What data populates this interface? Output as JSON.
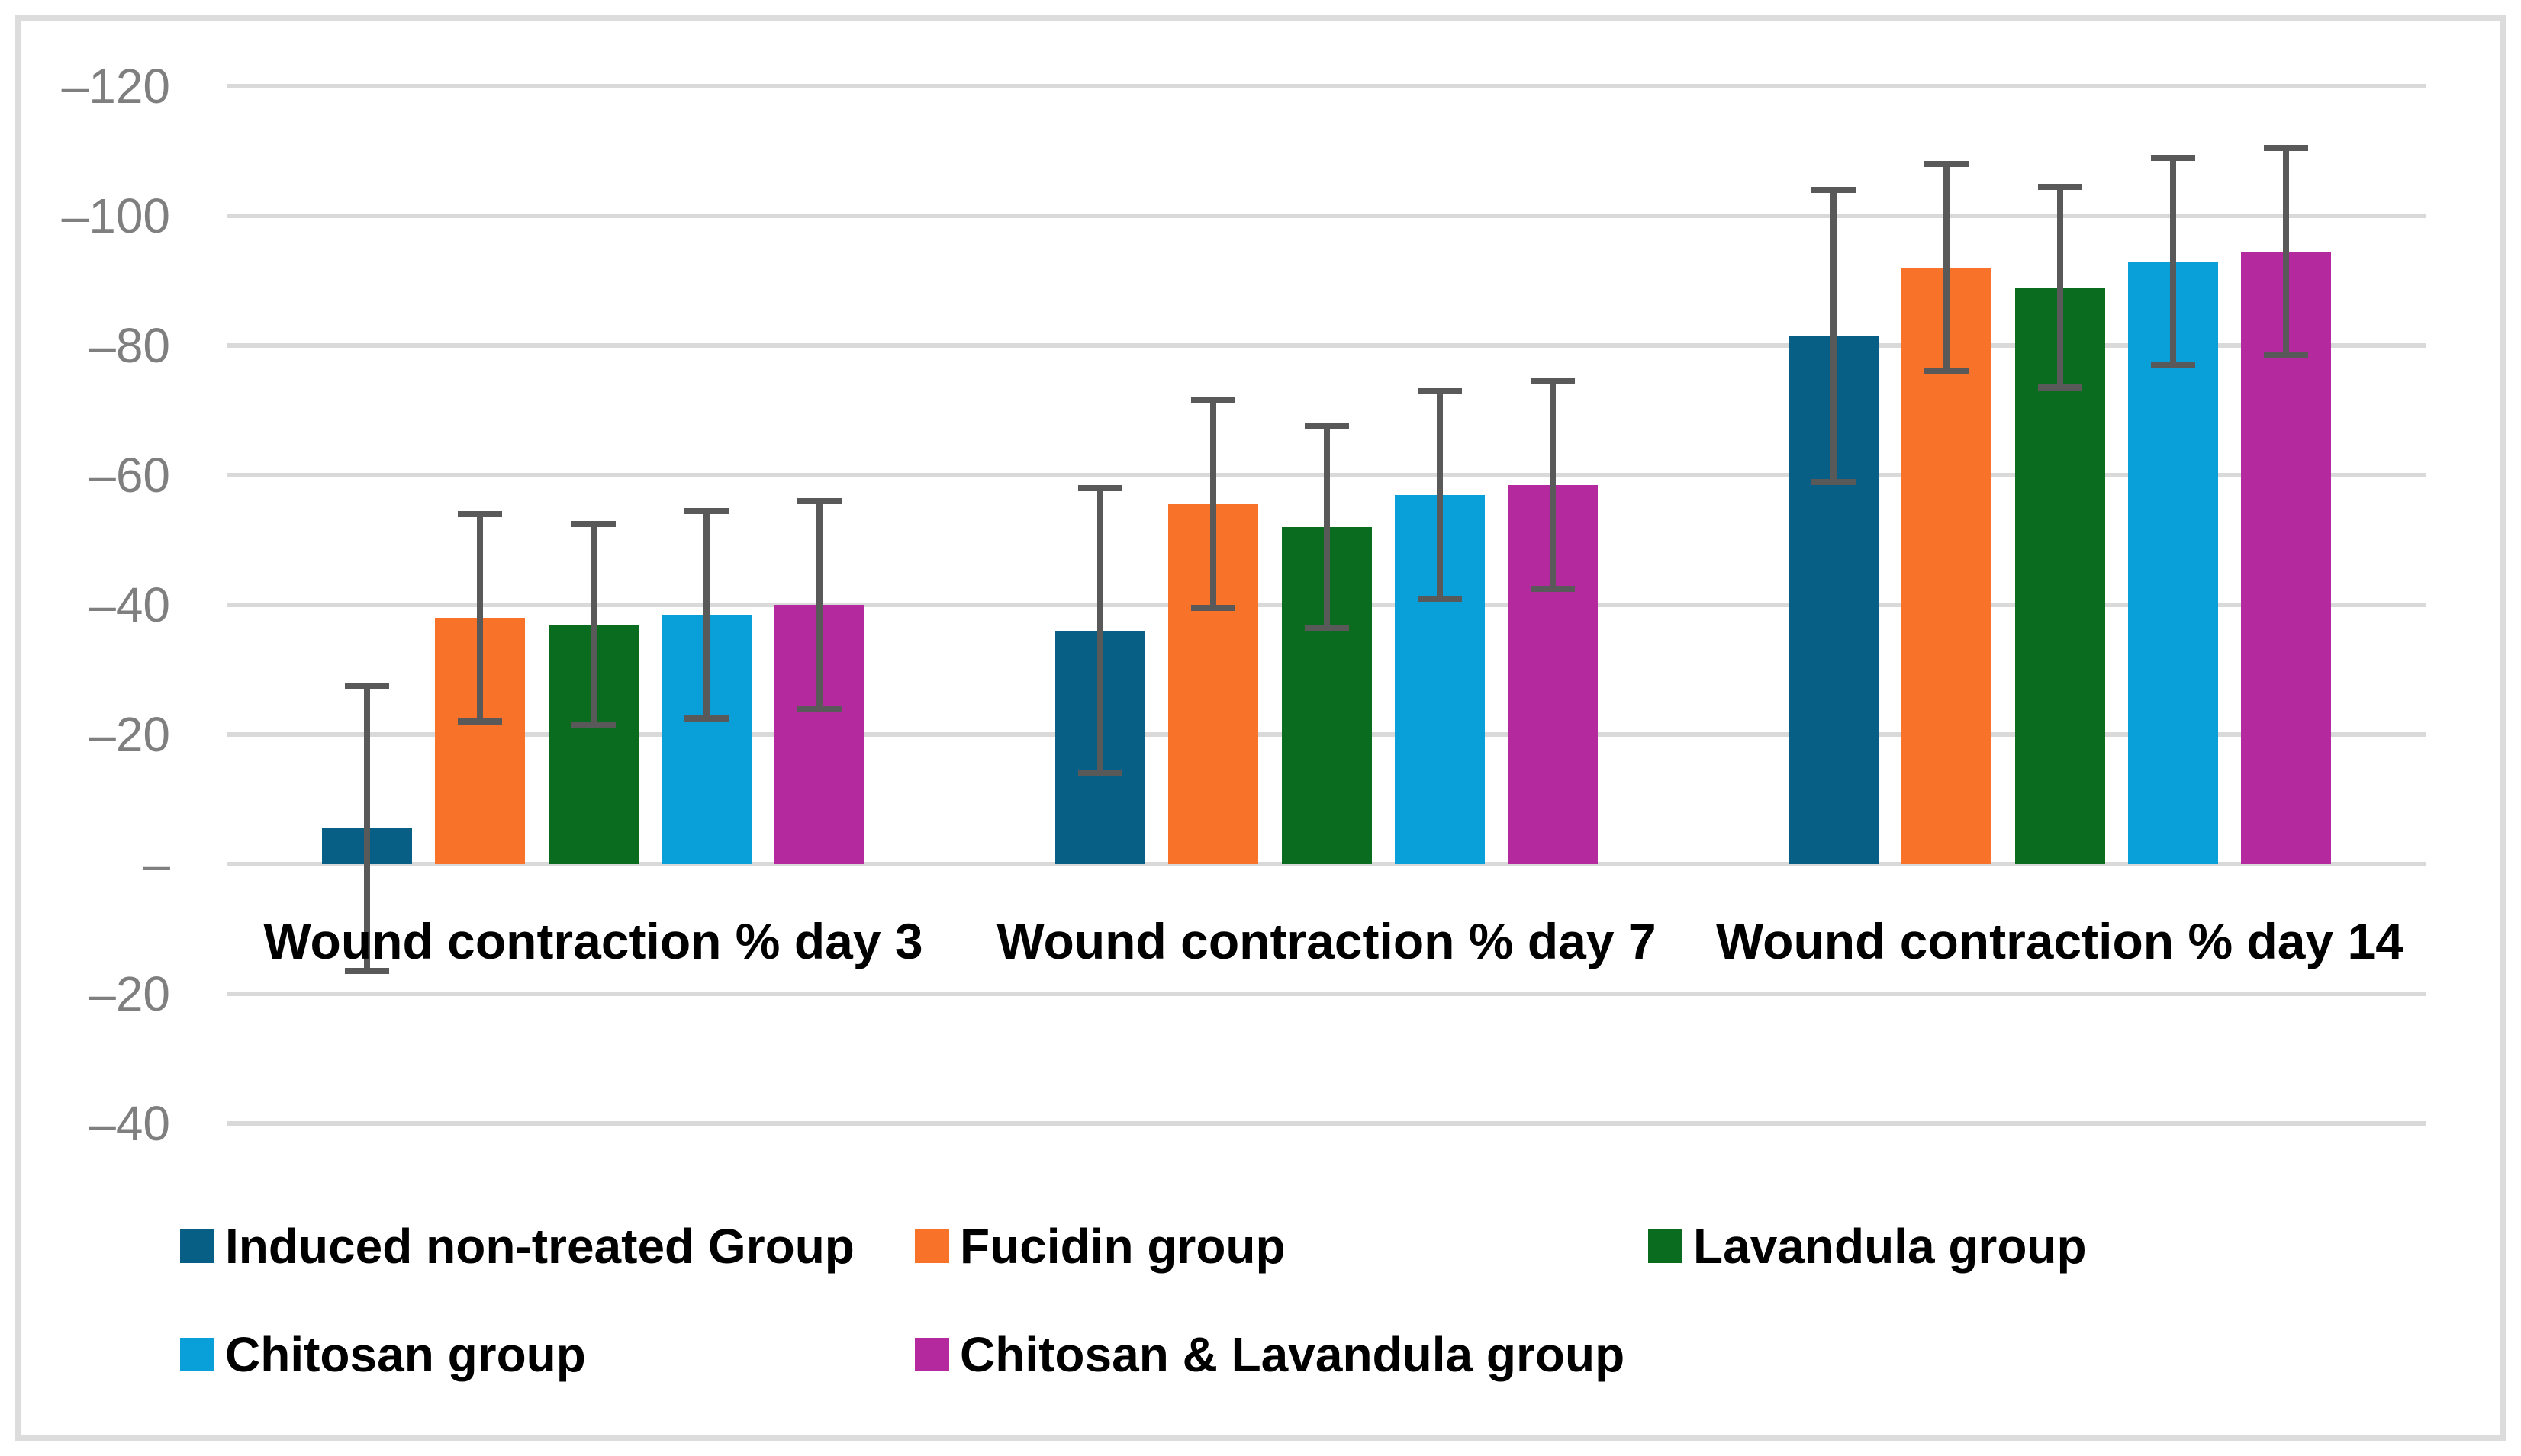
{
  "chart_data": {
    "type": "bar",
    "title": "",
    "categories": [
      "Wound contraction % day 3",
      "Wound contraction % day 7",
      "Wound contraction % day 14"
    ],
    "y_axis": {
      "tick_labels": [
        "–120",
        "–100",
        "–80",
        "–60",
        "–40",
        "–20",
        "–",
        "–20",
        "–40"
      ],
      "tick_values": [
        120,
        100,
        80,
        60,
        40,
        20,
        0,
        -20,
        -40
      ],
      "ylim": [
        -48,
        122
      ],
      "gridlines": "on"
    },
    "series": [
      {
        "name": "Induced non-treated Group",
        "color": "#075F85",
        "values": [
          5.5,
          36,
          81.5
        ],
        "errors": [
          22,
          22,
          22.5
        ]
      },
      {
        "name": "Fucidin group",
        "color": "#F87329",
        "values": [
          38,
          55.5,
          92
        ],
        "errors": [
          16,
          16,
          16
        ]
      },
      {
        "name": "Lavandula group",
        "color": "#0A6C1E",
        "values": [
          37,
          52,
          89
        ],
        "errors": [
          15.5,
          15.5,
          15.5
        ]
      },
      {
        "name": "Chitosan group",
        "color": "#09A0D9",
        "values": [
          38.5,
          57,
          93
        ],
        "errors": [
          16,
          16,
          16
        ]
      },
      {
        "name": "Chitosan & Lavandula group",
        "color": "#B42A9E",
        "values": [
          40,
          58.5,
          94.5
        ],
        "errors": [
          16,
          16,
          16
        ]
      }
    ],
    "legend_position": "bottom",
    "colors": {
      "error_bar": "#595959",
      "gridline": "#D9D9D9",
      "tick_label": "#7F7F7F",
      "border": "#DCDCDC",
      "background": "#FFFFFF",
      "category_label": "#000000"
    }
  }
}
